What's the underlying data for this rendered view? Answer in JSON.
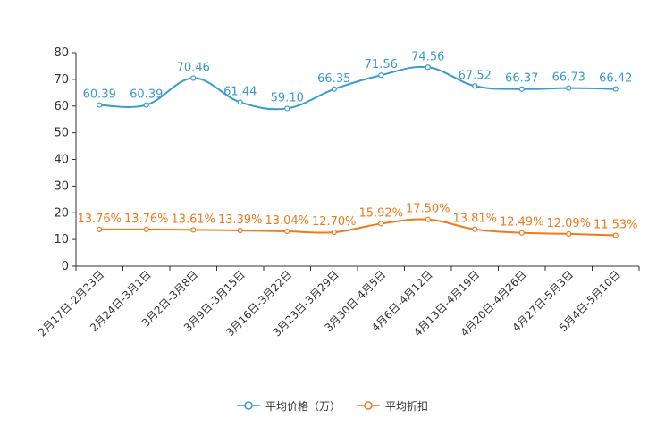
{
  "chart_data": {
    "type": "line",
    "title": "",
    "xlabel": "",
    "ylabel": "",
    "ylim": [
      0,
      80
    ],
    "yticks": [
      0,
      10,
      20,
      30,
      40,
      50,
      60,
      70,
      80
    ],
    "grid": false,
    "legend_position": "bottom-center",
    "categories": [
      "2月17日-2月23日",
      "2月24日-3月1日",
      "3月2日-3月8日",
      "3月9日-3月15日",
      "3月16日-3月22日",
      "3月23日-3月29日",
      "3月30日-4月5日",
      "4月6日-4月12日",
      "4月13日-4月19日",
      "4月20日-4月26日",
      "4月27日-5月3日",
      "5月4日-5月10日"
    ],
    "series": [
      {
        "name": "平均价格（万）",
        "color": "#3a9bcc",
        "values": [
          60.39,
          60.39,
          70.46,
          61.44,
          59.1,
          66.35,
          71.56,
          74.56,
          67.52,
          66.37,
          66.73,
          66.42
        ],
        "labels": [
          "60.39",
          "60.39",
          "70.46",
          "61.44",
          "59.10",
          "66.35",
          "71.56",
          "74.56",
          "67.52",
          "66.37",
          "66.73",
          "66.42"
        ]
      },
      {
        "name": "平均折扣",
        "color": "#f07a1a",
        "values": [
          13.76,
          13.76,
          13.61,
          13.39,
          13.04,
          12.7,
          15.92,
          17.5,
          13.81,
          12.49,
          12.09,
          11.53
        ],
        "labels": [
          "13.76%",
          "13.76%",
          "13.61%",
          "13.39%",
          "13.04%",
          "12.70%",
          "15.92%",
          "17.50%",
          "13.81%",
          "12.49%",
          "12.09%",
          "11.53%"
        ]
      }
    ]
  }
}
